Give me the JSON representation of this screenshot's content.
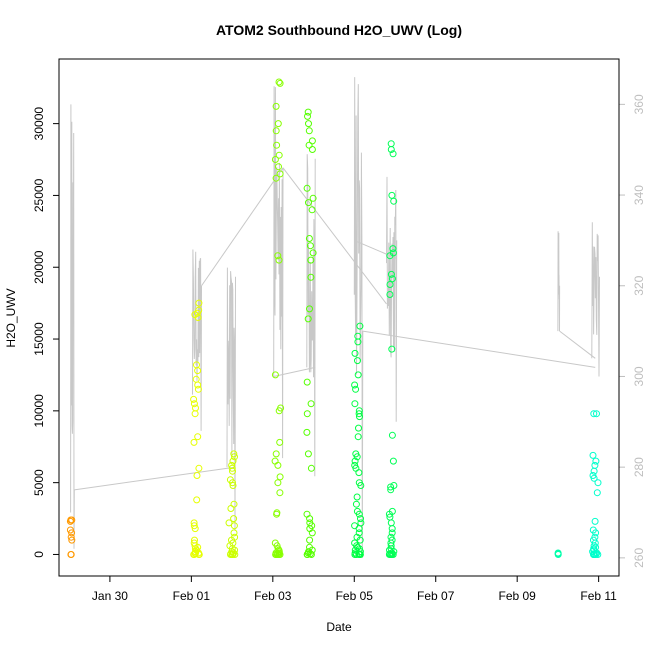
{
  "chart_data": {
    "type": "scatter",
    "title": "ATOM2 Southbound H2O_UWV (Log)",
    "xlabel": "Date",
    "ylabel": "H2O_UWV",
    "x_range": [
      "2017-01-28T18:00",
      "2017-02-11T12:00"
    ],
    "ylim": [
      -1500,
      34500
    ],
    "ylim_right": [
      256,
      370
    ],
    "x_ticks": [
      {
        "date": "2017-01-30",
        "label": "Jan 30"
      },
      {
        "date": "2017-02-01",
        "label": "Feb 01"
      },
      {
        "date": "2017-02-03",
        "label": "Feb 03"
      },
      {
        "date": "2017-02-05",
        "label": "Feb 05"
      },
      {
        "date": "2017-02-07",
        "label": "Feb 07"
      },
      {
        "date": "2017-02-09",
        "label": "Feb 09"
      },
      {
        "date": "2017-02-11",
        "label": "Feb 11"
      }
    ],
    "y_ticks": [
      {
        "value": 0,
        "label": "0"
      },
      {
        "value": 5000,
        "label": "5000"
      },
      {
        "value": 10000,
        "label": "10000"
      },
      {
        "value": 15000,
        "label": "15000"
      },
      {
        "value": 20000,
        "label": "20000"
      },
      {
        "value": 25000,
        "label": "25000"
      },
      {
        "value": 30000,
        "label": "30000"
      }
    ],
    "y_ticks_right": [
      {
        "value": 260,
        "label": "260"
      },
      {
        "value": 280,
        "label": "280"
      },
      {
        "value": 300,
        "label": "300"
      },
      {
        "value": 320,
        "label": "320"
      },
      {
        "value": 340,
        "label": "340"
      },
      {
        "value": 360,
        "label": "360"
      }
    ],
    "line_color": "#c8c8c8",
    "right_axis_color": "#bebebe",
    "grid": false,
    "legend": "none",
    "flights": [
      {
        "center": "2017-01-29T01:00",
        "spread": 0.03,
        "color": "#ff9900",
        "values": [
          2400,
          2400,
          2300,
          1700,
          1500,
          1200,
          1000,
          0,
          0
        ]
      },
      {
        "center": "2017-02-01T03:00",
        "spread": 0.07,
        "color": "#e6ff00",
        "values": [
          17500,
          17000,
          16700,
          16500,
          16800,
          13200,
          12800,
          12200,
          11800,
          11500,
          10800,
          10500,
          10200,
          9800,
          8200,
          7800,
          6000,
          5500,
          3800,
          2200,
          2000,
          1800,
          1000,
          800,
          600,
          500,
          400,
          300,
          200,
          100,
          100,
          50,
          0,
          0,
          0,
          0
        ]
      },
      {
        "center": "2017-02-02T00:00",
        "spread": 0.08,
        "color": "#ccff00",
        "values": [
          7000,
          6800,
          6500,
          6200,
          6000,
          5800,
          5200,
          5000,
          4800,
          3500,
          3200,
          2500,
          2200,
          2000,
          1500,
          1200,
          1000,
          800,
          600,
          400,
          300,
          200,
          100,
          50,
          0,
          0,
          0,
          0
        ]
      },
      {
        "center": "2017-02-03T03:00",
        "spread": 0.07,
        "color": "#88ff00",
        "values": [
          32900,
          32800,
          31200,
          30000,
          29500,
          28500,
          27800,
          27500,
          27000,
          26500,
          26200,
          20800,
          20500,
          12500,
          10200,
          10000,
          7800,
          7000,
          6500,
          6200,
          5400,
          5000,
          4300,
          2900,
          2800,
          800,
          600,
          400,
          300,
          200,
          100,
          100,
          50,
          0,
          0,
          0,
          0,
          0
        ]
      },
      {
        "center": "2017-02-03T22:00",
        "spread": 0.08,
        "color": "#55ff00",
        "values": [
          30800,
          30500,
          30000,
          29500,
          28800,
          28500,
          28200,
          25500,
          24800,
          24500,
          24000,
          22000,
          21500,
          21000,
          20500,
          19300,
          17100,
          16400,
          12000,
          10500,
          9800,
          8500,
          7000,
          6000,
          2800,
          2500,
          2200,
          2000,
          1800,
          1500,
          1000,
          500,
          300,
          200,
          100,
          50,
          0,
          0,
          0
        ]
      },
      {
        "center": "2017-02-05T02:00",
        "spread": 0.08,
        "color": "#00ff44",
        "values": [
          15900,
          15200,
          14800,
          14000,
          13500,
          12500,
          11800,
          11500,
          10500,
          10000,
          9600,
          9800,
          8800,
          8200,
          7000,
          6800,
          6500,
          6200,
          6000,
          5700,
          5000,
          4800,
          4000,
          3500,
          3000,
          2800,
          2500,
          2200,
          2000,
          1800,
          1500,
          1200,
          1000,
          800,
          600,
          500,
          400,
          300,
          200,
          100,
          50,
          0,
          0,
          0,
          0,
          0
        ]
      },
      {
        "center": "2017-02-05T22:00",
        "spread": 0.06,
        "color": "#00ff55",
        "values": [
          28600,
          28200,
          27900,
          25000,
          24600,
          21300,
          21000,
          20800,
          19500,
          19200,
          18800,
          18100,
          14300,
          8300,
          6500,
          4800,
          4700,
          4500,
          3000,
          2800,
          2600,
          2200,
          1800,
          1500,
          1200,
          1000,
          800,
          600,
          400,
          300,
          200,
          100,
          50,
          0,
          0,
          0,
          0
        ]
      },
      {
        "center": "2017-02-10T00:00",
        "spread": 0.01,
        "color": "#00ffaa",
        "values": [
          100,
          50,
          0
        ]
      },
      {
        "center": "2017-02-10T22:00",
        "spread": 0.07,
        "color": "#00ffcc",
        "values": [
          9800,
          9800,
          6900,
          6500,
          6200,
          5800,
          5500,
          5300,
          5000,
          4300,
          2300,
          1700,
          1500,
          1200,
          1000,
          800,
          600,
          500,
          400,
          300,
          200,
          100,
          100,
          50,
          0,
          0,
          0,
          0,
          0,
          0
        ]
      }
    ],
    "flight_lines": [
      {
        "start": "2017-01-29T00:50",
        "end": "2017-01-29T03:00",
        "min": 262,
        "max": 360,
        "left_level": 270,
        "right_level": 275
      },
      {
        "start": "2017-02-01T00:40",
        "end": "2017-02-01T06:00",
        "min": 288,
        "max": 328,
        "left_level": 296,
        "right_level": 320
      },
      {
        "start": "2017-02-01T21:00",
        "end": "2017-02-02T02:00",
        "min": 266,
        "max": 324,
        "left_level": 280,
        "right_level": 322
      },
      {
        "start": "2017-02-03T00:30",
        "end": "2017-02-03T06:00",
        "min": 282,
        "max": 364,
        "left_level": 300,
        "right_level": 346
      },
      {
        "start": "2017-02-03T20:00",
        "end": "2017-02-04T01:00",
        "min": 278,
        "max": 349,
        "left_level": 302,
        "right_level": 348
      },
      {
        "start": "2017-02-05T00:00",
        "end": "2017-02-05T05:00",
        "min": 260,
        "max": 366,
        "left_level": 318,
        "right_level": 310
      },
      {
        "start": "2017-02-05T19:00",
        "end": "2017-02-06T01:00",
        "min": 290,
        "max": 344,
        "left_level": 325,
        "right_level": 330
      },
      {
        "start": "2017-02-10T00:00",
        "end": "2017-02-10T01:00",
        "min": 310,
        "max": 332,
        "left_level": 310,
        "right_level": 320
      },
      {
        "start": "2017-02-10T20:00",
        "end": "2017-02-11T00:30",
        "min": 300,
        "max": 334,
        "left_level": 304,
        "right_level": 322
      }
    ],
    "connector_lines": [
      {
        "from": {
          "x": "2017-01-29T03:00",
          "y": 275
        },
        "to": {
          "x": "2017-02-02T02:00",
          "y": 280
        }
      },
      {
        "from": {
          "x": "2017-02-01T06:00",
          "y": 320
        },
        "to": {
          "x": "2017-02-03T06:00",
          "y": 346
        }
      },
      {
        "from": {
          "x": "2017-02-03T06:00",
          "y": 346
        },
        "to": {
          "x": "2017-02-05T19:00",
          "y": 316
        }
      },
      {
        "from": {
          "x": "2017-02-04T01:00",
          "y": 302
        },
        "to": {
          "x": "2017-02-03T00:30",
          "y": 300
        }
      },
      {
        "from": {
          "x": "2017-02-05T05:00",
          "y": 310
        },
        "to": {
          "x": "2017-02-10T22:00",
          "y": 302
        }
      },
      {
        "from": {
          "x": "2017-02-05T00:00",
          "y": 330
        },
        "to": {
          "x": "2017-02-06T01:00",
          "y": 326
        }
      },
      {
        "from": {
          "x": "2017-02-10T01:00",
          "y": 310
        },
        "to": {
          "x": "2017-02-10T22:00",
          "y": 304
        }
      }
    ]
  }
}
